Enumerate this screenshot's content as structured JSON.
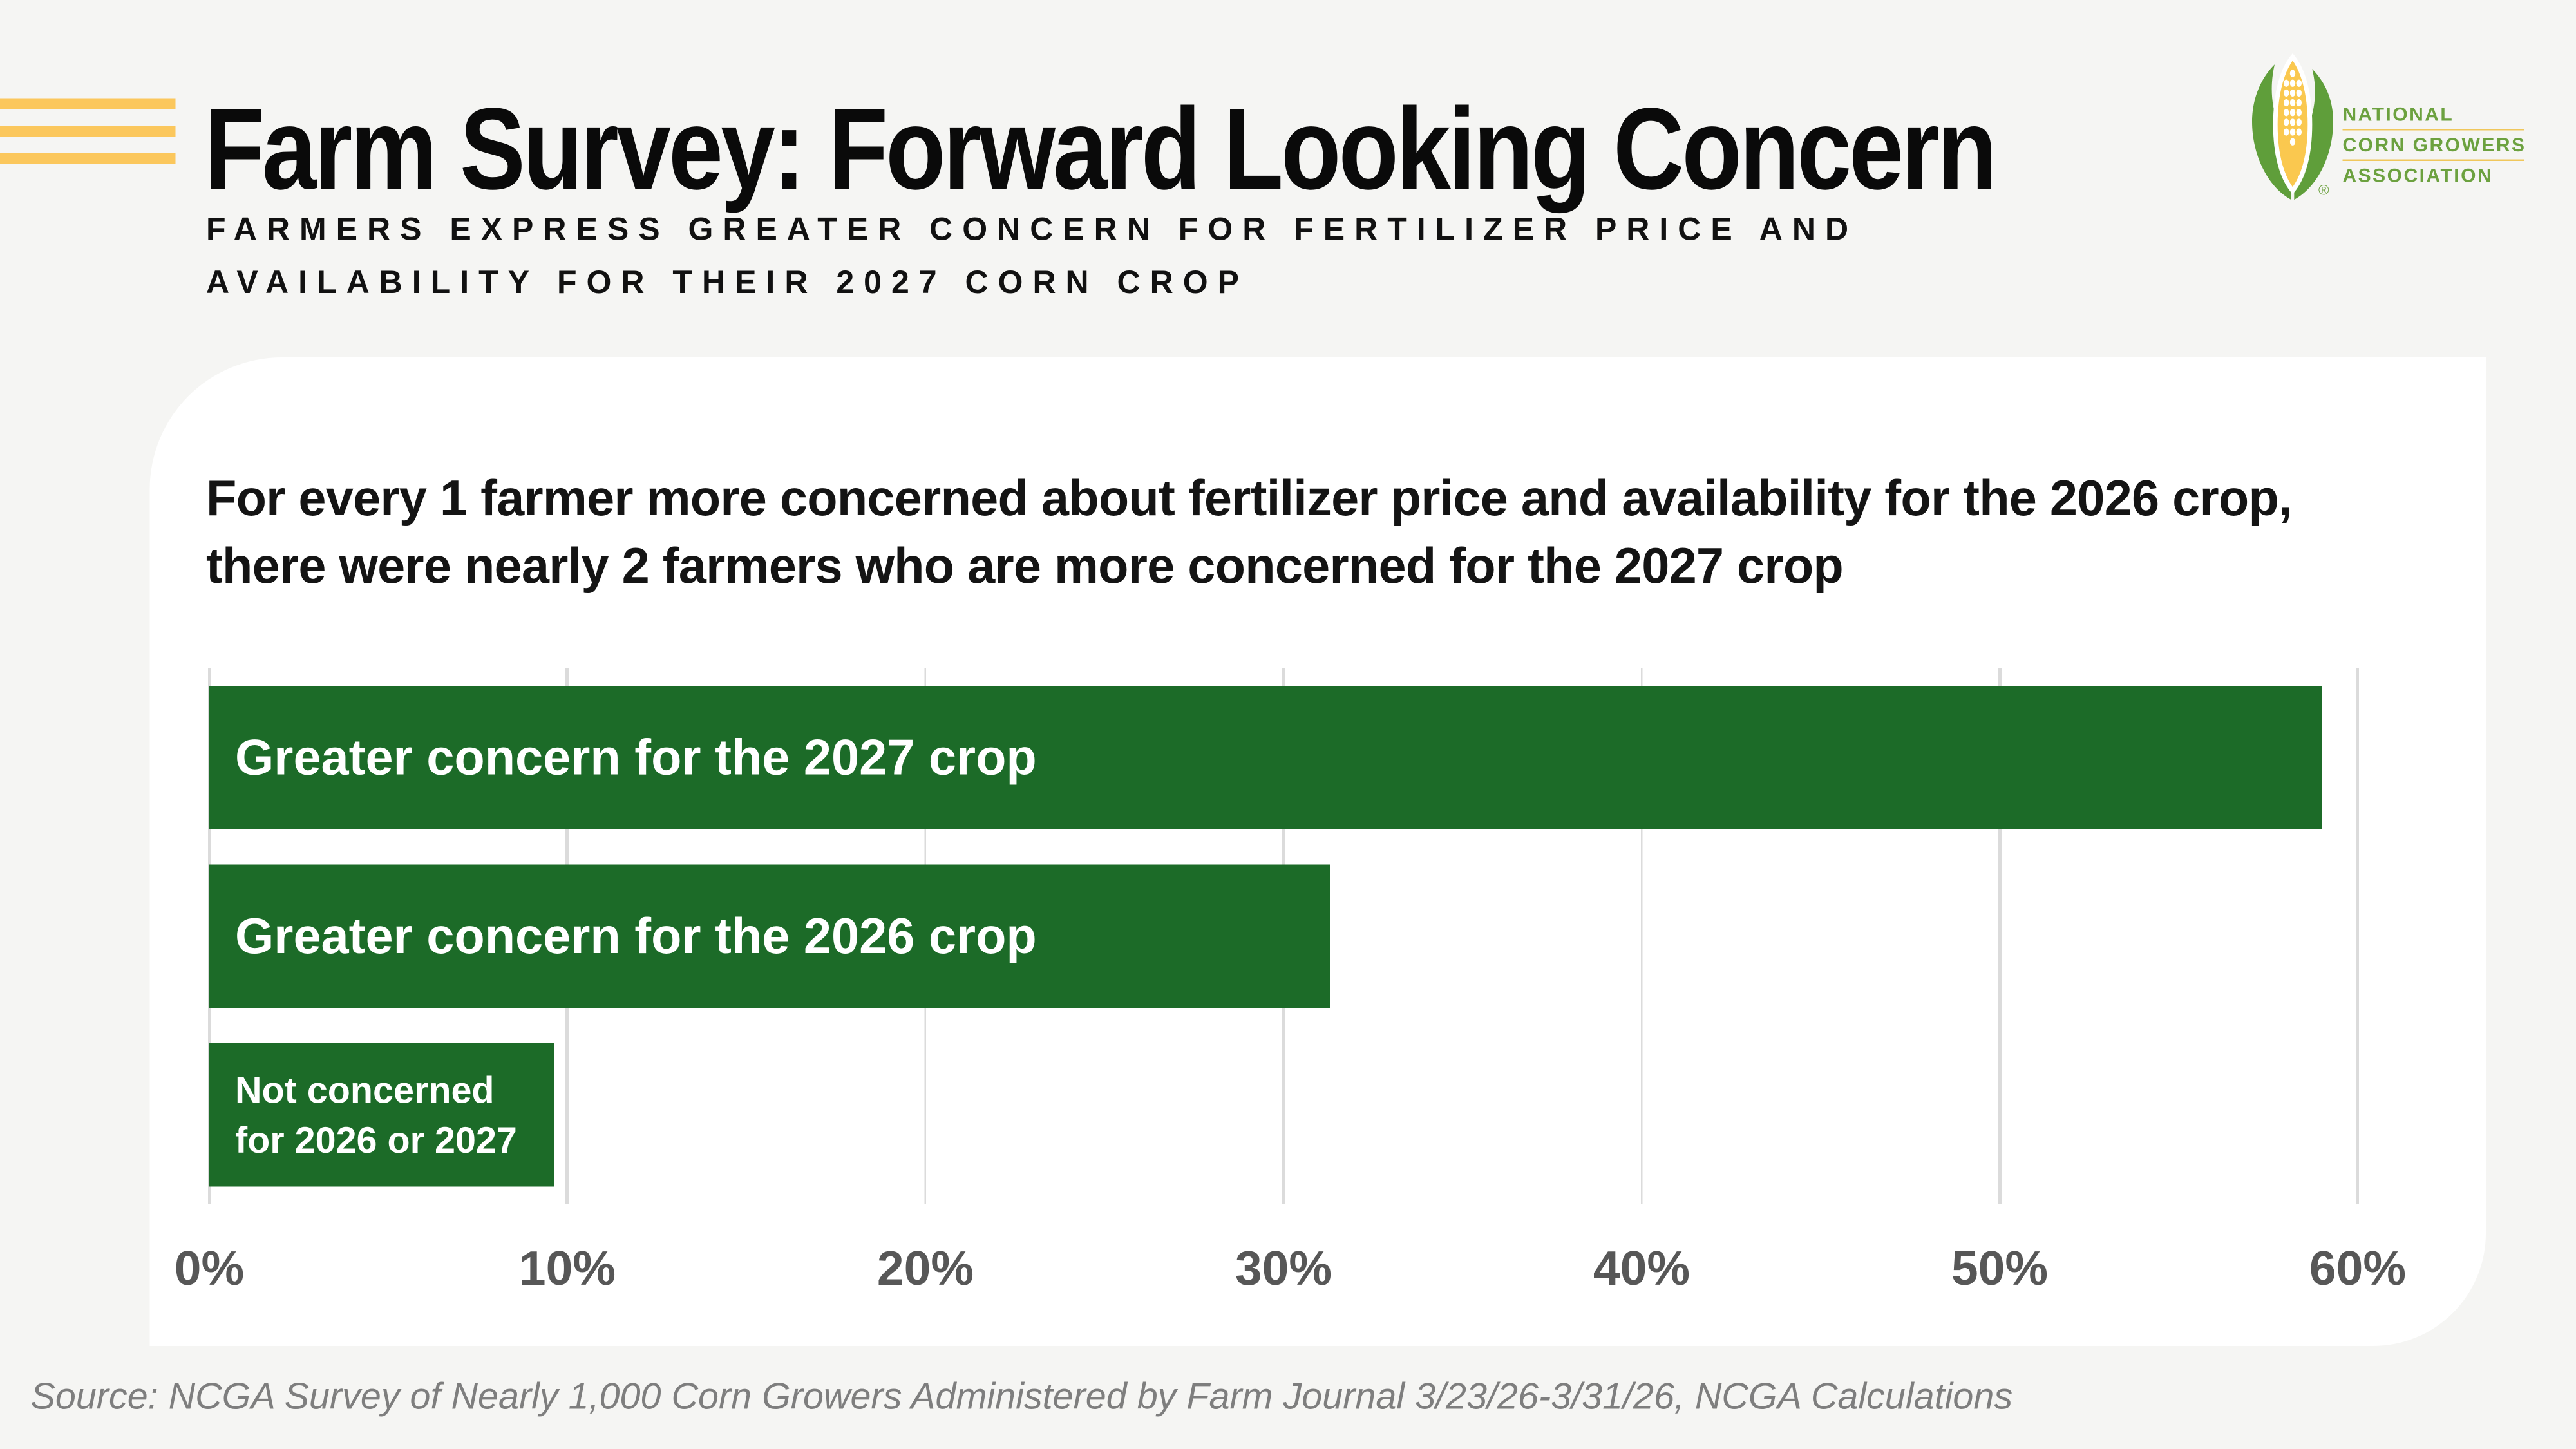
{
  "colors": {
    "page_background": "#F5F5F3",
    "accent_yellow": "#FBC75C",
    "logo_text_green": "#6CA13F",
    "logo_line_yellow": "#F0C75B",
    "corn_husk_green": "#5F9E3A",
    "corn_cob_yellow": "#FAC84F"
  },
  "header": {
    "title": "Farm Survey: Forward Looking Concern",
    "subtitle_line1": "FARMERS EXPRESS GREATER CONCERN FOR FERTILIZER PRICE AND",
    "subtitle_line2": "AVAILABILITY FOR THEIR 2027 CORN CROP"
  },
  "logo": {
    "org_line1": "NATIONAL",
    "org_line2": "CORN GROWERS",
    "org_line3": "ASSOCIATION",
    "registered_mark": "®"
  },
  "card": {
    "heading_line1": "For every 1 farmer more concerned about fertilizer price and availability for the 2026 crop,",
    "heading_line2": "there were nearly 2 farmers who are more concerned for the 2027 crop"
  },
  "chart_data": {
    "type": "bar",
    "orientation": "horizontal",
    "categories": [
      "Greater concern for the 2027 crop",
      "Greater concern for the 2026 crop",
      "Not concerned\nfor 2026 or 2027"
    ],
    "values": [
      59,
      31.3,
      9.6
    ],
    "unit": "%",
    "xlim": [
      0,
      60
    ],
    "x_ticks": [
      "0%",
      "10%",
      "20%",
      "30%",
      "40%",
      "50%",
      "60%"
    ],
    "grid": true,
    "legend": false,
    "bar_color": "#1C6B28",
    "bar_label_color": "#FFFFFF",
    "gridline_color": "#DBDBDB",
    "tick_color": "#575757"
  },
  "footer": {
    "source": "Source: NCGA Survey of Nearly 1,000 Corn Growers Administered by Farm Journal 3/23/26-3/31/26, NCGA Calculations"
  }
}
